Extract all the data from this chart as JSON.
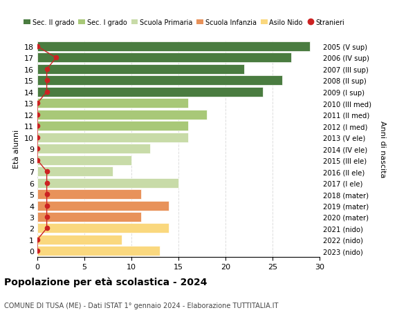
{
  "ages": [
    0,
    1,
    2,
    3,
    4,
    5,
    6,
    7,
    8,
    9,
    10,
    11,
    12,
    13,
    14,
    15,
    16,
    17,
    18
  ],
  "values": [
    13,
    9,
    14,
    11,
    14,
    11,
    15,
    8,
    10,
    12,
    16,
    16,
    18,
    16,
    24,
    26,
    22,
    27,
    29
  ],
  "colors": [
    "#FAD87E",
    "#FAD87E",
    "#FAD87E",
    "#E8925A",
    "#E8925A",
    "#E8925A",
    "#C8DBA8",
    "#C8DBA8",
    "#C8DBA8",
    "#C8DBA8",
    "#C8DBA8",
    "#A8C878",
    "#A8C878",
    "#A8C878",
    "#4A7C40",
    "#4A7C40",
    "#4A7C40",
    "#4A7C40",
    "#4A7C40"
  ],
  "stranieri_values": [
    0,
    0,
    1,
    1,
    1,
    1,
    1,
    1,
    0,
    0,
    0,
    0,
    0,
    0,
    1,
    1,
    1,
    2,
    0
  ],
  "right_labels": [
    "2023 (nido)",
    "2022 (nido)",
    "2021 (nido)",
    "2020 (mater)",
    "2019 (mater)",
    "2018 (mater)",
    "2017 (I ele)",
    "2016 (II ele)",
    "2015 (III ele)",
    "2014 (IV ele)",
    "2013 (V ele)",
    "2012 (I med)",
    "2011 (II med)",
    "2010 (III med)",
    "2009 (I sup)",
    "2008 (II sup)",
    "2007 (III sup)",
    "2006 (IV sup)",
    "2005 (V sup)"
  ],
  "legend_labels": [
    "Sec. II grado",
    "Sec. I grado",
    "Scuola Primaria",
    "Scuola Infanzia",
    "Asilo Nido",
    "Stranieri"
  ],
  "legend_colors": [
    "#4A7C40",
    "#A8C878",
    "#C8DBA8",
    "#E8925A",
    "#FAD87E",
    "#CC2222"
  ],
  "ylabel_left": "Età alunni",
  "right_axis_label": "Anni di nascita",
  "title": "Popolazione per età scolastica - 2024",
  "subtitle": "COMUNE DI TUSA (ME) - Dati ISTAT 1° gennaio 2024 - Elaborazione TUTTITALIA.IT",
  "xlim": [
    0,
    30
  ],
  "stranieri_color": "#CC2222",
  "bar_height": 0.85,
  "grid_color": "#dddddd"
}
